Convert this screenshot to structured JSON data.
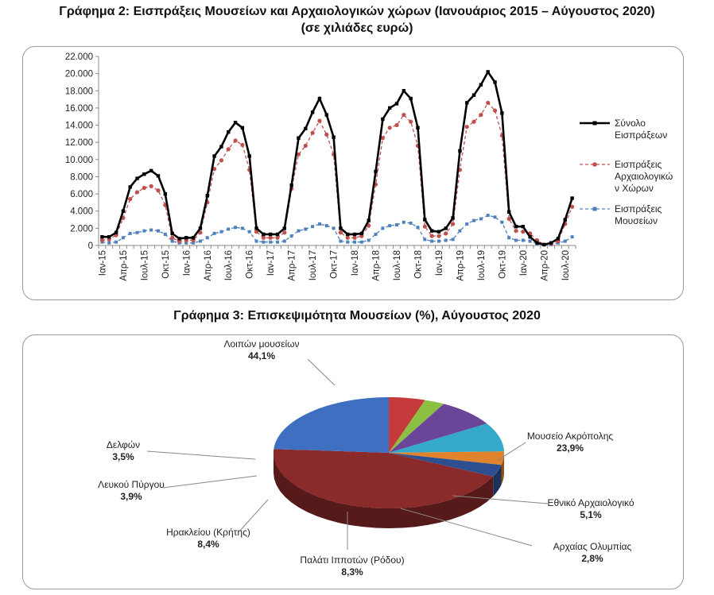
{
  "chart2": {
    "title_line1": "Γράφημα 2: Εισπράξεις Μουσείων και Αρχαιολογικών χώρων (Ιανουάριος 2015 – Αύγουστος 2020)",
    "title_line2": "(σε χιλιάδες ευρώ)"
  },
  "chart3": {
    "title": "Γράφημα 3: Επισκεψιμότητα Μουσείων (%), Αύγουστος 2020"
  },
  "chart_data": [
    {
      "type": "line",
      "title": "Γράφημα 2: Εισπράξεις Μουσείων και Αρχαιολογικών χώρων (Ιανουάριος 2015 – Αύγουστος 2020)",
      "subtitle": "(σε χιλιάδες ευρώ)",
      "ylim": [
        0,
        22000
      ],
      "yticks": [
        "0",
        "2.000",
        "4.000",
        "6.000",
        "8.000",
        "10.000",
        "12.000",
        "14.000",
        "16.000",
        "18.000",
        "20.000",
        "22.000"
      ],
      "ytick_values": [
        0,
        2000,
        4000,
        6000,
        8000,
        10000,
        12000,
        14000,
        16000,
        18000,
        20000,
        22000
      ],
      "x": [
        "Ιαν-15",
        "Φεβ-15",
        "Μαρ-15",
        "Απρ-15",
        "Μαϊ-15",
        "Ιουν-15",
        "Ιουλ-15",
        "Αυγ-15",
        "Σεπ-15",
        "Οκτ-15",
        "Νοε-15",
        "Δεκ-15",
        "Ιαν-16",
        "Φεβ-16",
        "Μαρ-16",
        "Απρ-16",
        "Μαϊ-16",
        "Ιουν-16",
        "Ιουλ-16",
        "Αυγ-16",
        "Σεπ-16",
        "Οκτ-16",
        "Νοε-16",
        "Δεκ-16",
        "Ιαν-17",
        "Φεβ-17",
        "Μαρ-17",
        "Απρ-17",
        "Μαϊ-17",
        "Ιουν-17",
        "Ιουλ-17",
        "Αυγ-17",
        "Σεπ-17",
        "Οκτ-17",
        "Νοε-17",
        "Δεκ-17",
        "Ιαν-18",
        "Φεβ-18",
        "Μαρ-18",
        "Απρ-18",
        "Μαϊ-18",
        "Ιουν-18",
        "Ιουλ-18",
        "Αυγ-18",
        "Σεπ-18",
        "Οκτ-18",
        "Νοε-18",
        "Δεκ-18",
        "Ιαν-19",
        "Φεβ-19",
        "Μαρ-19",
        "Απρ-19",
        "Μαϊ-19",
        "Ιουν-19",
        "Ιουλ-19",
        "Αυγ-19",
        "Σεπ-19",
        "Οκτ-19",
        "Νοε-19",
        "Δεκ-19",
        "Ιαν-20",
        "Φεβ-20",
        "Μαρ-20",
        "Απρ-20",
        "Μαϊ-20",
        "Ιουν-20",
        "Ιουλ-20",
        "Αυγ-20"
      ],
      "x_tick_labels": [
        "Ιαν-15",
        "Απρ-15",
        "Ιουλ-15",
        "Οκτ-15",
        "Ιαν-16",
        "Απρ-16",
        "Ιουλ-16",
        "Οκτ-16",
        "Ιαν-17",
        "Απρ-17",
        "Ιουλ-17",
        "Οκτ-17",
        "Ιαν-18",
        "Απρ-18",
        "Ιουλ-18",
        "Οκτ-18",
        "Ιαν-19",
        "Απρ-19",
        "Ιουλ-19",
        "Οκτ-19",
        "Ιαν-20",
        "Απρ-20",
        "Ιουλ-20"
      ],
      "legend_position": "right",
      "series": [
        {
          "name": "Σύνολο Εισπράξεων",
          "color": "#000000",
          "style": "solid",
          "marker": "square",
          "values": [
            1000,
            1000,
            1500,
            4000,
            6800,
            7800,
            8300,
            8700,
            8100,
            6000,
            1400,
            800,
            900,
            900,
            2000,
            5800,
            10400,
            11500,
            13200,
            14300,
            13700,
            10400,
            2000,
            1300,
            1300,
            1300,
            2000,
            7000,
            12500,
            13600,
            15500,
            17100,
            15200,
            12600,
            2000,
            1300,
            1300,
            1400,
            2900,
            8600,
            14700,
            16000,
            16500,
            18000,
            17100,
            13700,
            3000,
            1700,
            1600,
            2000,
            3200,
            11000,
            16600,
            17500,
            18700,
            20200,
            19000,
            15400,
            3900,
            2200,
            2200,
            1000,
            300,
            100,
            300,
            800,
            3000,
            5500
          ]
        },
        {
          "name": "Εισπράξεις Αρχαιολογικών Χώρων",
          "color": "#c0504d",
          "style": "dashed",
          "marker": "circle",
          "values": [
            600,
            700,
            1200,
            3200,
            5400,
            6200,
            6700,
            6900,
            6400,
            4700,
            900,
            500,
            600,
            600,
            1500,
            5000,
            8900,
            9900,
            11200,
            12200,
            11700,
            8800,
            1600,
            900,
            900,
            900,
            1500,
            6600,
            10600,
            11600,
            13100,
            14500,
            12900,
            10600,
            1500,
            900,
            900,
            1100,
            2300,
            7100,
            12500,
            13700,
            14000,
            15200,
            14400,
            11600,
            2200,
            1100,
            1100,
            1400,
            2500,
            8800,
            13800,
            14400,
            15200,
            16600,
            15700,
            12800,
            3100,
            1700,
            1600,
            1400,
            600,
            100,
            200,
            500,
            2500,
            4500
          ]
        },
        {
          "name": "Εισπράξεις Μουσείων",
          "color": "#4f81bd",
          "style": "dashed",
          "marker": "square",
          "values": [
            400,
            300,
            400,
            900,
            1400,
            1500,
            1700,
            1800,
            1700,
            1300,
            500,
            300,
            300,
            300,
            500,
            900,
            1400,
            1600,
            1900,
            2100,
            2000,
            1600,
            500,
            400,
            400,
            400,
            500,
            1100,
            1700,
            1900,
            2200,
            2500,
            2300,
            2000,
            500,
            400,
            400,
            400,
            600,
            1300,
            2000,
            2300,
            2400,
            2700,
            2600,
            2100,
            700,
            500,
            500,
            600,
            700,
            1700,
            2500,
            2900,
            3100,
            3500,
            3300,
            2700,
            900,
            600,
            600,
            500,
            200,
            100,
            100,
            300,
            500,
            1000
          ]
        }
      ]
    },
    {
      "type": "pie",
      "title": "Γράφημα 3: Επισκεψιμότητα Μουσείων (%), Αύγουστος 2020",
      "labels": [
        "Λοιπών μουσείων",
        "Μουσείο Ακρόπολης",
        "Εθνικό Αρχαιολογικό",
        "Αρχαίας Ολυμπίας",
        "Παλάτι Ιπποτών (Ρόδου)",
        "Ηρακλείου (Κρήτης)",
        "Λευκού Πύργου",
        "Δελφών"
      ],
      "values": [
        44.1,
        23.9,
        5.1,
        2.8,
        8.3,
        8.4,
        3.9,
        3.5
      ],
      "value_labels": [
        "44,1%",
        "23,9%",
        "5,1%",
        "2,8%",
        "8,3%",
        "8,4%",
        "3,9%",
        "3,5%"
      ],
      "colors": [
        "#8b2a2a",
        "#3f6fc1",
        "#c53a3a",
        "#8cc043",
        "#6b4598",
        "#35a9c9",
        "#e0832b",
        "#2d4f8f"
      ]
    }
  ]
}
